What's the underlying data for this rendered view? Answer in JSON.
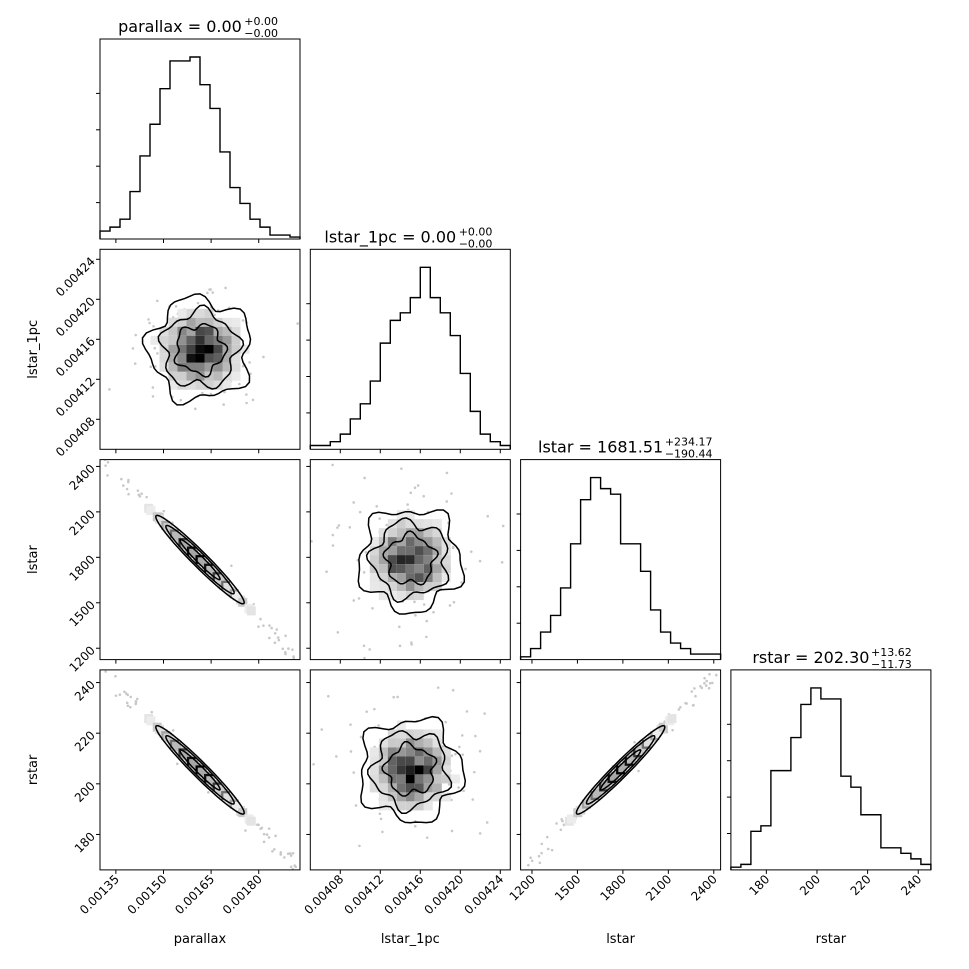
{
  "chart_data": {
    "type": "corner",
    "parameters": [
      {
        "key": "parallax",
        "label": "parallax",
        "title_main": "parallax = 0.00",
        "title_plus": "+0.00",
        "title_minus": "−0.00",
        "range": [
          0.0013,
          0.00193
        ],
        "ticks": [
          0.00135,
          0.0015,
          0.00165,
          0.0018
        ],
        "tick_labels": [
          "0.00135",
          "0.00150",
          "0.00165",
          "0.00180"
        ]
      },
      {
        "key": "lstar_1pc",
        "label": "lstar_1pc",
        "title_main": "lstar_1pc = 0.00",
        "title_plus": "+0.00",
        "title_minus": "−0.00",
        "range": [
          0.00405,
          0.00425
        ],
        "ticks": [
          0.00408,
          0.00412,
          0.00416,
          0.0042,
          0.00424
        ],
        "tick_labels": [
          "0.00408",
          "0.00412",
          "0.00416",
          "0.00420",
          "0.00424"
        ]
      },
      {
        "key": "lstar",
        "label": "lstar",
        "title_main": "lstar = 1681.51",
        "title_plus": "+234.17",
        "title_minus": "−190.44",
        "range": [
          1125,
          2445
        ],
        "ticks": [
          1200,
          1500,
          1800,
          2100,
          2400
        ],
        "tick_labels": [
          "1200",
          "1500",
          "1800",
          "2100",
          "2400"
        ]
      },
      {
        "key": "rstar",
        "label": "rstar",
        "title_main": "rstar = 202.30",
        "title_plus": "+13.62",
        "title_minus": "−11.73",
        "range": [
          166,
          245
        ],
        "ticks": [
          180,
          200,
          220,
          240
        ],
        "tick_labels": [
          "180",
          "200",
          "220",
          "240"
        ]
      }
    ],
    "marginals": [
      [
        2,
        3,
        5,
        12,
        21,
        29,
        38,
        45,
        45,
        46,
        39,
        33,
        22,
        13,
        9,
        5,
        3,
        1,
        1,
        0.5
      ],
      [
        0.5,
        0.5,
        1,
        2,
        4,
        6,
        9,
        14,
        17,
        18,
        20,
        24,
        20,
        18,
        15,
        10,
        5,
        2,
        1,
        0.5
      ],
      [
        0.5,
        2,
        5,
        8,
        13,
        21,
        29,
        33,
        31,
        30,
        21,
        21,
        16,
        9,
        5,
        3,
        2,
        1,
        1,
        1
      ],
      [
        0.5,
        1,
        7,
        8,
        18,
        18,
        24,
        30,
        33,
        31,
        31,
        17,
        15,
        10,
        10,
        4,
        4,
        3,
        2,
        1
      ]
    ],
    "correlations": {
      "parallax_lstar": -0.99,
      "parallax_rstar": -0.98,
      "lstar_rstar": 0.99,
      "parallax_lstar_1pc": 0.0,
      "lstar_1pc_lstar": 0.0,
      "lstar_1pc_rstar": 0.0
    }
  }
}
